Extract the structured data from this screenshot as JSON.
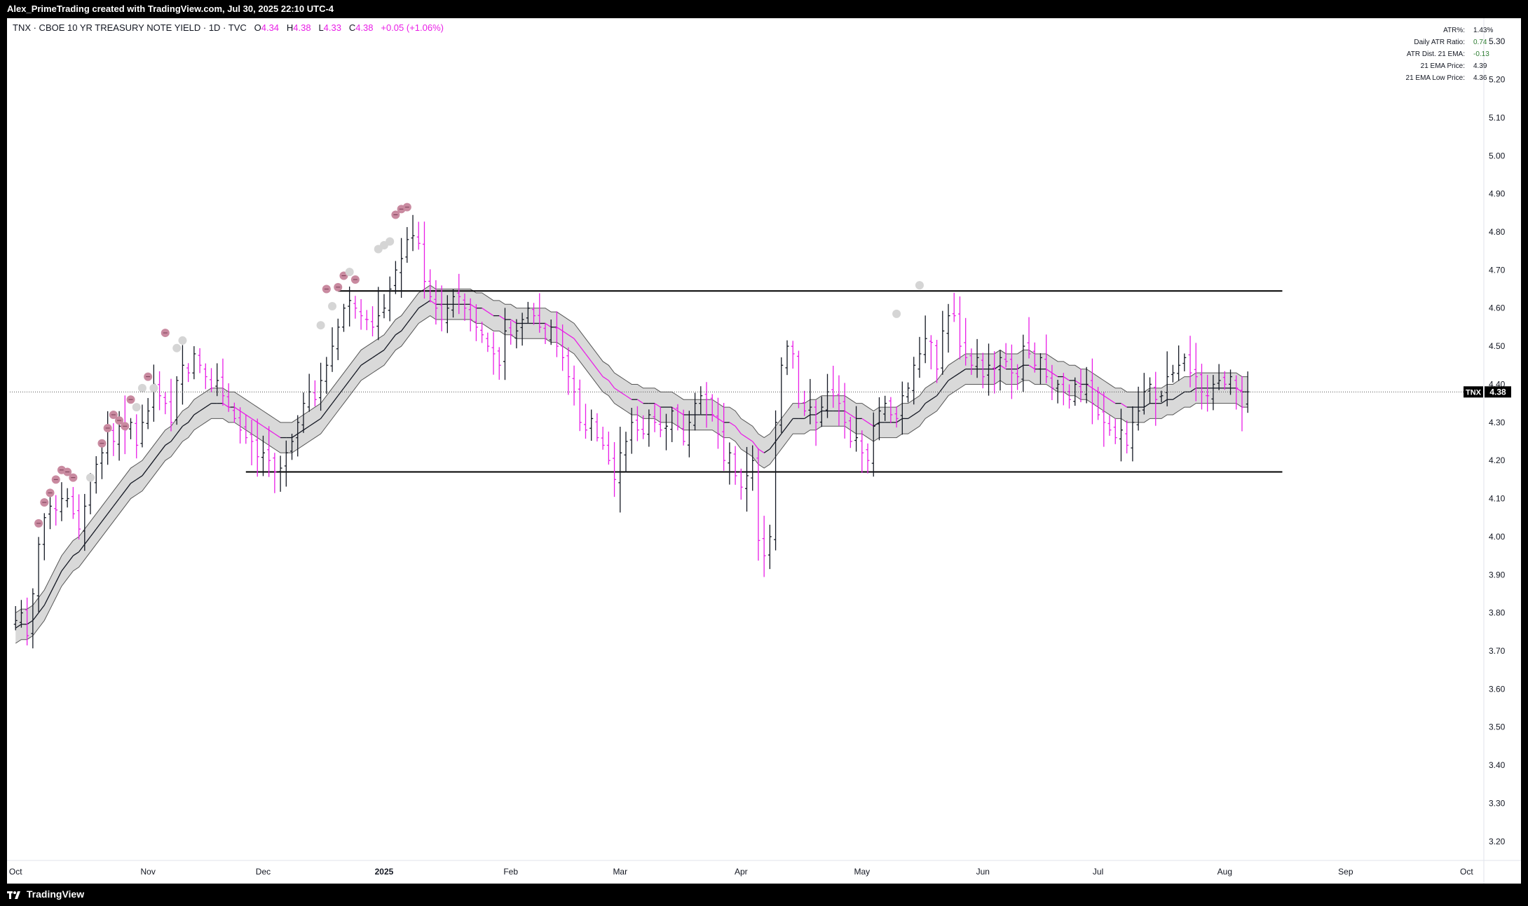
{
  "header": {
    "attribution": "Alex_PrimeTrading created with TradingView.com, Jul 30, 2025 22:10 UTC-4"
  },
  "legend": {
    "title": "TNX · CBOE 10 YR TREASURY NOTE YIELD · 1D · TVC",
    "o_label": "O",
    "o_value": "4.34",
    "h_label": "H",
    "h_value": "4.38",
    "l_label": "L",
    "l_value": "4.33",
    "c_label": "C",
    "c_value": "4.38",
    "change": "+0.05 (+1.06%)"
  },
  "stats_table": [
    {
      "label": "ATR%:",
      "value": "1.43%",
      "color": "#131722"
    },
    {
      "label": "Daily ATR Ratio:",
      "value": "0.74",
      "color": "#2e7d32"
    },
    {
      "label": "ATR Dist. 21 EMA:",
      "value": "-0.13",
      "color": "#2e7d32"
    },
    {
      "label": "21 EMA Price:",
      "value": "4.39",
      "color": "#131722"
    },
    {
      "label": "21 EMA Low Price:",
      "value": "4.36",
      "color": "#131722"
    }
  ],
  "price_badge": {
    "symbol": "TNX",
    "price": "4.38"
  },
  "footer": {
    "brand": "TradingView"
  },
  "colors": {
    "up_bar": "#131722",
    "down_bar": "#e91ee6",
    "ema_band": "#d9d9d9",
    "signal_dot_pink": "#c98aa0",
    "signal_dot_grey": "#d5d5d5"
  },
  "chart_data": {
    "type": "ohlc",
    "ylim": [
      3.15,
      5.35
    ],
    "y_ticks": [
      "5.30",
      "5.20",
      "5.10",
      "5.00",
      "4.90",
      "4.80",
      "4.70",
      "4.60",
      "4.50",
      "4.40",
      "4.30",
      "4.20",
      "4.10",
      "4.00",
      "3.90",
      "3.80",
      "3.70",
      "3.60",
      "3.50",
      "3.40",
      "3.30",
      "3.20"
    ],
    "x_labels": [
      {
        "label": "Oct",
        "day": 0,
        "bold": false
      },
      {
        "label": "Nov",
        "day": 23,
        "bold": false
      },
      {
        "label": "Dec",
        "day": 43,
        "bold": false
      },
      {
        "label": "2025",
        "day": 64,
        "bold": true
      },
      {
        "label": "Feb",
        "day": 86,
        "bold": false
      },
      {
        "label": "Mar",
        "day": 105,
        "bold": false
      },
      {
        "label": "Apr",
        "day": 126,
        "bold": false
      },
      {
        "label": "May",
        "day": 147,
        "bold": false
      },
      {
        "label": "Jun",
        "day": 168,
        "bold": false
      },
      {
        "label": "Jul",
        "day": 188,
        "bold": false
      },
      {
        "label": "Aug",
        "day": 210,
        "bold": false
      },
      {
        "label": "Sep",
        "day": 231,
        "bold": false
      },
      {
        "label": "Oct",
        "day": 252,
        "bold": false
      }
    ],
    "x_range": [
      -1,
      255
    ],
    "closes": [
      3.78,
      3.8,
      3.74,
      3.85,
      3.98,
      4.05,
      4.08,
      4.07,
      4.1,
      4.1,
      4.06,
      4.02,
      4.08,
      4.15,
      4.19,
      4.22,
      4.28,
      4.25,
      4.29,
      4.28,
      4.3,
      4.24,
      4.3,
      4.33,
      4.4,
      4.37,
      4.35,
      4.3,
      4.41,
      4.45,
      4.43,
      4.48,
      4.45,
      4.42,
      4.39,
      4.41,
      4.37,
      4.34,
      4.31,
      4.28,
      4.26,
      4.25,
      4.21,
      4.22,
      4.2,
      4.17,
      4.18,
      4.22,
      4.25,
      4.3,
      4.35,
      4.38,
      4.36,
      4.41,
      4.45,
      4.5,
      4.55,
      4.6,
      4.62,
      4.6,
      4.58,
      4.57,
      4.55,
      4.58,
      4.6,
      4.65,
      4.7,
      4.73,
      4.78,
      4.79,
      4.77,
      4.67,
      4.63,
      4.6,
      4.57,
      4.6,
      4.63,
      4.63,
      4.6,
      4.57,
      4.55,
      4.53,
      4.5,
      4.48,
      4.45,
      4.54,
      4.53,
      4.54,
      4.57,
      4.6,
      4.58,
      4.55,
      4.52,
      4.55,
      4.5,
      4.47,
      4.42,
      4.38,
      4.3,
      4.28,
      4.31,
      4.26,
      4.24,
      4.2,
      4.15,
      4.22,
      4.25,
      4.3,
      4.28,
      4.27,
      4.32,
      4.3,
      4.28,
      4.29,
      4.33,
      4.29,
      4.25,
      4.3,
      4.35,
      4.37,
      4.36,
      4.32,
      4.27,
      4.2,
      4.22,
      4.16,
      4.13,
      4.16,
      4.2,
      3.99,
      3.95,
      4.0,
      4.3,
      4.45,
      4.5,
      4.48,
      4.35,
      4.33,
      4.34,
      4.3,
      4.34,
      4.38,
      4.37,
      4.35,
      4.3,
      4.25,
      4.26,
      4.22,
      4.2,
      4.29,
      4.33,
      4.35,
      4.32,
      4.31,
      4.37,
      4.39,
      4.45,
      4.48,
      4.52,
      4.51,
      4.44,
      4.54,
      4.58,
      4.58,
      4.5,
      4.47,
      4.45,
      4.47,
      4.42,
      4.45,
      4.44,
      4.47,
      4.46,
      4.43,
      4.42,
      4.5,
      4.48,
      4.45,
      4.47,
      4.42,
      4.39,
      4.4,
      4.38,
      4.36,
      4.4,
      4.38,
      4.4,
      4.35,
      4.32,
      4.3,
      4.28,
      4.26,
      4.28,
      4.24,
      4.3,
      4.33,
      4.38,
      4.4,
      4.36,
      4.37,
      4.42,
      4.43,
      4.45,
      4.47,
      4.43,
      4.42,
      4.38,
      4.37,
      4.4,
      4.41,
      4.4,
      4.42,
      4.39,
      4.34,
      4.38
    ],
    "ema21": [
      3.76,
      3.77,
      3.77,
      3.78,
      3.8,
      3.82,
      3.85,
      3.88,
      3.91,
      3.93,
      3.95,
      3.96,
      3.98,
      4.0,
      4.02,
      4.04,
      4.06,
      4.08,
      4.1,
      4.12,
      4.14,
      4.15,
      4.16,
      4.18,
      4.2,
      4.22,
      4.24,
      4.25,
      4.27,
      4.29,
      4.3,
      4.32,
      4.33,
      4.34,
      4.35,
      4.35,
      4.35,
      4.34,
      4.34,
      4.33,
      4.32,
      4.31,
      4.3,
      4.29,
      4.28,
      4.27,
      4.26,
      4.26,
      4.26,
      4.27,
      4.28,
      4.29,
      4.3,
      4.31,
      4.33,
      4.35,
      4.37,
      4.39,
      4.41,
      4.43,
      4.45,
      4.46,
      4.47,
      4.48,
      4.49,
      4.51,
      4.53,
      4.54,
      4.56,
      4.58,
      4.6,
      4.61,
      4.62,
      4.61,
      4.61,
      4.61,
      4.61,
      4.61,
      4.61,
      4.61,
      4.6,
      4.6,
      4.59,
      4.58,
      4.58,
      4.57,
      4.57,
      4.56,
      4.56,
      4.56,
      4.56,
      4.56,
      4.56,
      4.55,
      4.55,
      4.54,
      4.53,
      4.52,
      4.5,
      4.48,
      4.46,
      4.44,
      4.42,
      4.41,
      4.39,
      4.38,
      4.37,
      4.36,
      4.36,
      4.35,
      4.35,
      4.35,
      4.34,
      4.34,
      4.34,
      4.33,
      4.32,
      4.32,
      4.32,
      4.32,
      4.32,
      4.32,
      4.31,
      4.3,
      4.3,
      4.29,
      4.27,
      4.26,
      4.25,
      4.23,
      4.22,
      4.23,
      4.25,
      4.27,
      4.29,
      4.31,
      4.31,
      4.31,
      4.32,
      4.32,
      4.33,
      4.33,
      4.33,
      4.33,
      4.33,
      4.32,
      4.31,
      4.31,
      4.3,
      4.29,
      4.3,
      4.3,
      4.3,
      4.3,
      4.31,
      4.31,
      4.32,
      4.33,
      4.35,
      4.36,
      4.37,
      4.39,
      4.41,
      4.42,
      4.43,
      4.44,
      4.44,
      4.44,
      4.44,
      4.44,
      4.44,
      4.45,
      4.44,
      4.44,
      4.44,
      4.45,
      4.45,
      4.44,
      4.44,
      4.44,
      4.43,
      4.42,
      4.42,
      4.41,
      4.41,
      4.4,
      4.4,
      4.39,
      4.38,
      4.37,
      4.36,
      4.35,
      4.35,
      4.34,
      4.34,
      4.34,
      4.34,
      4.35,
      4.35,
      4.35,
      4.36,
      4.36,
      4.37,
      4.38,
      4.38,
      4.39,
      4.39,
      4.39,
      4.39,
      4.39,
      4.39,
      4.39,
      4.39,
      4.38,
      4.38
    ],
    "ema_band_half_width": 0.04,
    "support_line": {
      "value": 4.17,
      "from_day": 40,
      "to_day": 220
    },
    "resistance_line": {
      "value": 4.645,
      "from_day": 56,
      "to_day": 220
    },
    "signal_dots": [
      {
        "day": 4,
        "value": 4.035,
        "kind": "pink"
      },
      {
        "day": 5,
        "value": 4.09,
        "kind": "pink"
      },
      {
        "day": 6,
        "value": 4.115,
        "kind": "pink"
      },
      {
        "day": 7,
        "value": 4.15,
        "kind": "pink"
      },
      {
        "day": 8,
        "value": 4.175,
        "kind": "pink"
      },
      {
        "day": 9,
        "value": 4.17,
        "kind": "pink"
      },
      {
        "day": 10,
        "value": 4.155,
        "kind": "pink"
      },
      {
        "day": 13,
        "value": 4.155,
        "kind": "grey"
      },
      {
        "day": 15,
        "value": 4.245,
        "kind": "pink"
      },
      {
        "day": 16,
        "value": 4.285,
        "kind": "pink"
      },
      {
        "day": 17,
        "value": 4.32,
        "kind": "pink"
      },
      {
        "day": 18,
        "value": 4.305,
        "kind": "pink"
      },
      {
        "day": 19,
        "value": 4.29,
        "kind": "pink"
      },
      {
        "day": 20,
        "value": 4.36,
        "kind": "pink"
      },
      {
        "day": 21,
        "value": 4.34,
        "kind": "grey"
      },
      {
        "day": 22,
        "value": 4.39,
        "kind": "grey"
      },
      {
        "day": 23,
        "value": 4.42,
        "kind": "pink"
      },
      {
        "day": 24,
        "value": 4.39,
        "kind": "grey"
      },
      {
        "day": 26,
        "value": 4.535,
        "kind": "pink"
      },
      {
        "day": 28,
        "value": 4.495,
        "kind": "grey"
      },
      {
        "day": 29,
        "value": 4.515,
        "kind": "grey"
      },
      {
        "day": 53,
        "value": 4.555,
        "kind": "grey"
      },
      {
        "day": 54,
        "value": 4.65,
        "kind": "pink"
      },
      {
        "day": 55,
        "value": 4.605,
        "kind": "grey"
      },
      {
        "day": 56,
        "value": 4.655,
        "kind": "pink"
      },
      {
        "day": 57,
        "value": 4.685,
        "kind": "pink"
      },
      {
        "day": 58,
        "value": 4.695,
        "kind": "grey"
      },
      {
        "day": 59,
        "value": 4.675,
        "kind": "pink"
      },
      {
        "day": 63,
        "value": 4.755,
        "kind": "grey"
      },
      {
        "day": 64,
        "value": 4.765,
        "kind": "grey"
      },
      {
        "day": 65,
        "value": 4.775,
        "kind": "grey"
      },
      {
        "day": 66,
        "value": 4.845,
        "kind": "pink"
      },
      {
        "day": 67,
        "value": 4.86,
        "kind": "pink"
      },
      {
        "day": 68,
        "value": 4.865,
        "kind": "pink"
      },
      {
        "day": 153,
        "value": 4.585,
        "kind": "grey"
      },
      {
        "day": 157,
        "value": 4.66,
        "kind": "grey"
      }
    ]
  }
}
